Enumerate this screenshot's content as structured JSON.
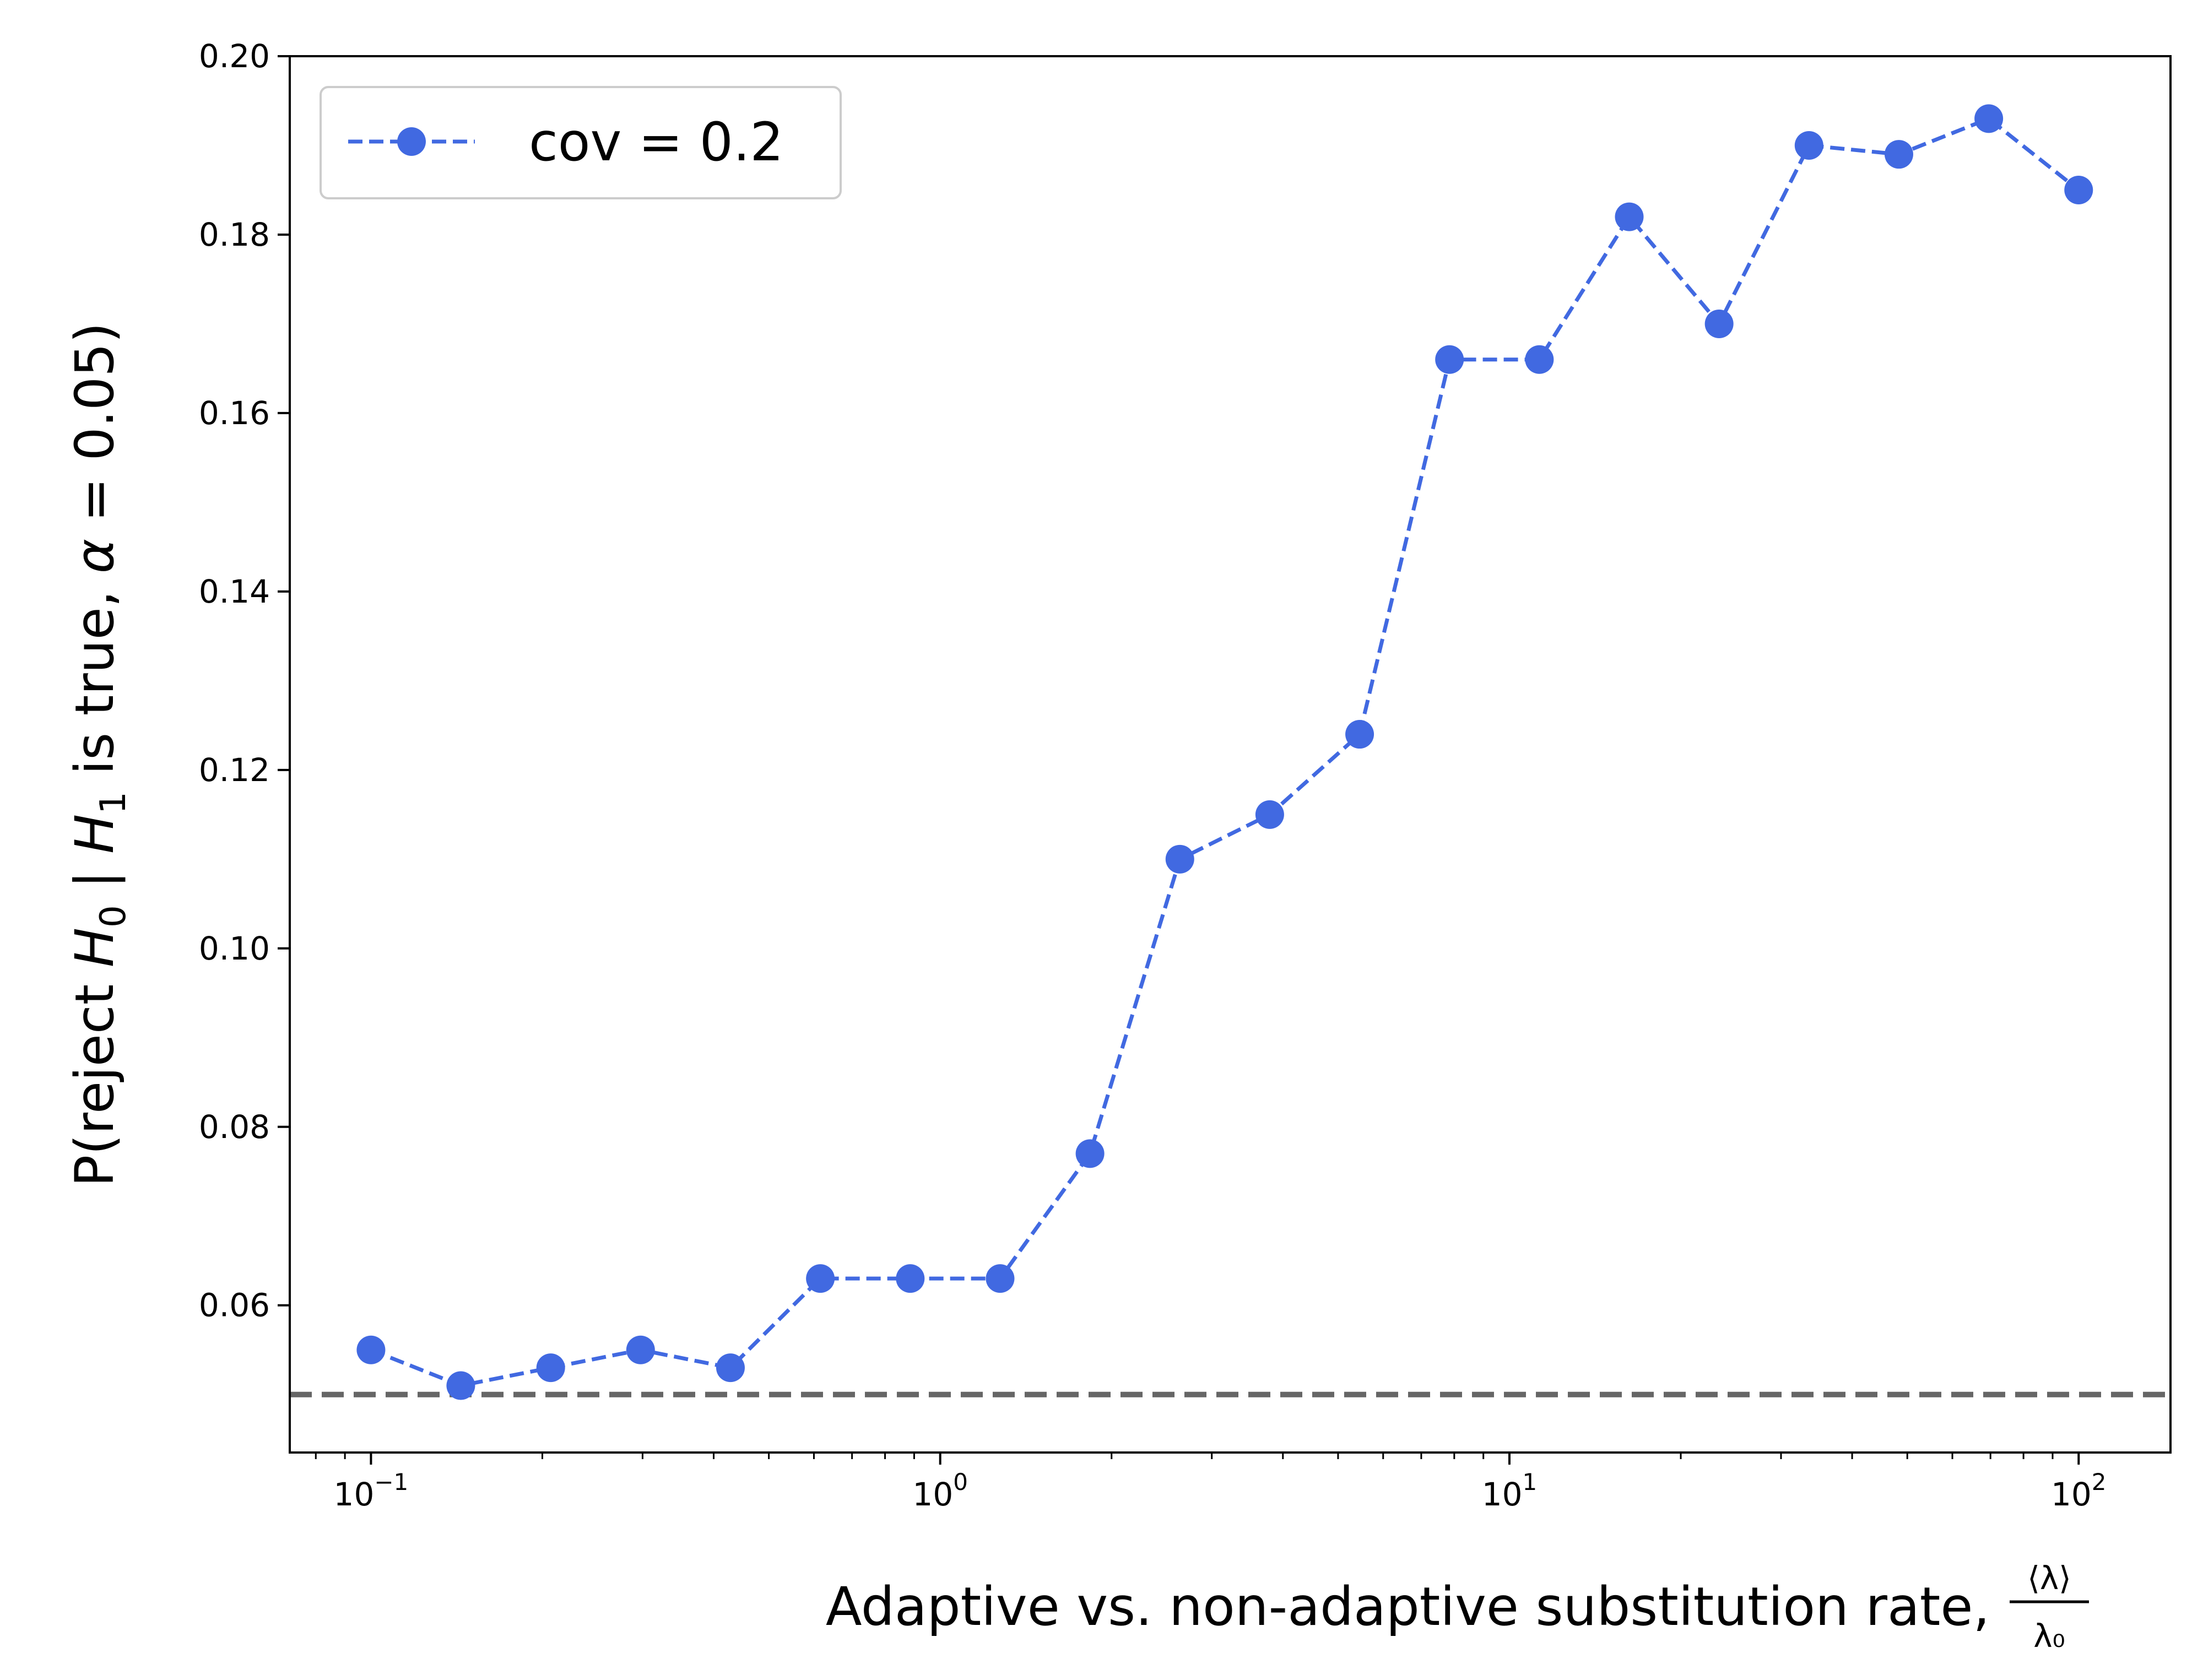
{
  "chart_data": {
    "type": "line",
    "title": "",
    "xlabel": "Adaptive vs. non-adaptive substitution rate,",
    "xlabel_fraction": {
      "numerator": "⟨λ⟩",
      "denominator": "λ₀"
    },
    "ylabel": "P(reject H₀ | H₁ is true, α = 0.05)",
    "xscale": "log",
    "xlim": [
      0.072,
      145
    ],
    "ylim": [
      0.0435,
      0.2
    ],
    "x_ticks": [
      {
        "value": 0.1,
        "base": "10",
        "exp": "−1"
      },
      {
        "value": 1,
        "base": "10",
        "exp": "0"
      },
      {
        "value": 10,
        "base": "10",
        "exp": "1"
      },
      {
        "value": 100,
        "base": "10",
        "exp": "2"
      }
    ],
    "y_ticks": [
      "0.06",
      "0.08",
      "0.10",
      "0.12",
      "0.14",
      "0.16",
      "0.18",
      "0.20"
    ],
    "grid": false,
    "legend_position": "top-left",
    "series": [
      {
        "name": "cov = 0.2",
        "color": "#4169e1",
        "linestyle": "dashed",
        "marker": "circle",
        "x": [
          0.1,
          0.1438,
          0.2069,
          0.2976,
          0.4281,
          0.6158,
          0.8859,
          1.2743,
          1.833,
          2.6367,
          3.7927,
          5.4556,
          7.8476,
          11.2884,
          16.2378,
          23.3572,
          33.5982,
          48.3293,
          69.5193,
          100
        ],
        "y": [
          0.055,
          0.051,
          0.053,
          0.055,
          0.053,
          0.063,
          0.063,
          0.063,
          0.077,
          0.11,
          0.115,
          0.124,
          0.166,
          0.166,
          0.182,
          0.17,
          0.19,
          0.189,
          0.193,
          0.185
        ]
      }
    ],
    "reference_line": {
      "y": 0.05,
      "color": "#666666",
      "linestyle": "dashed"
    }
  }
}
